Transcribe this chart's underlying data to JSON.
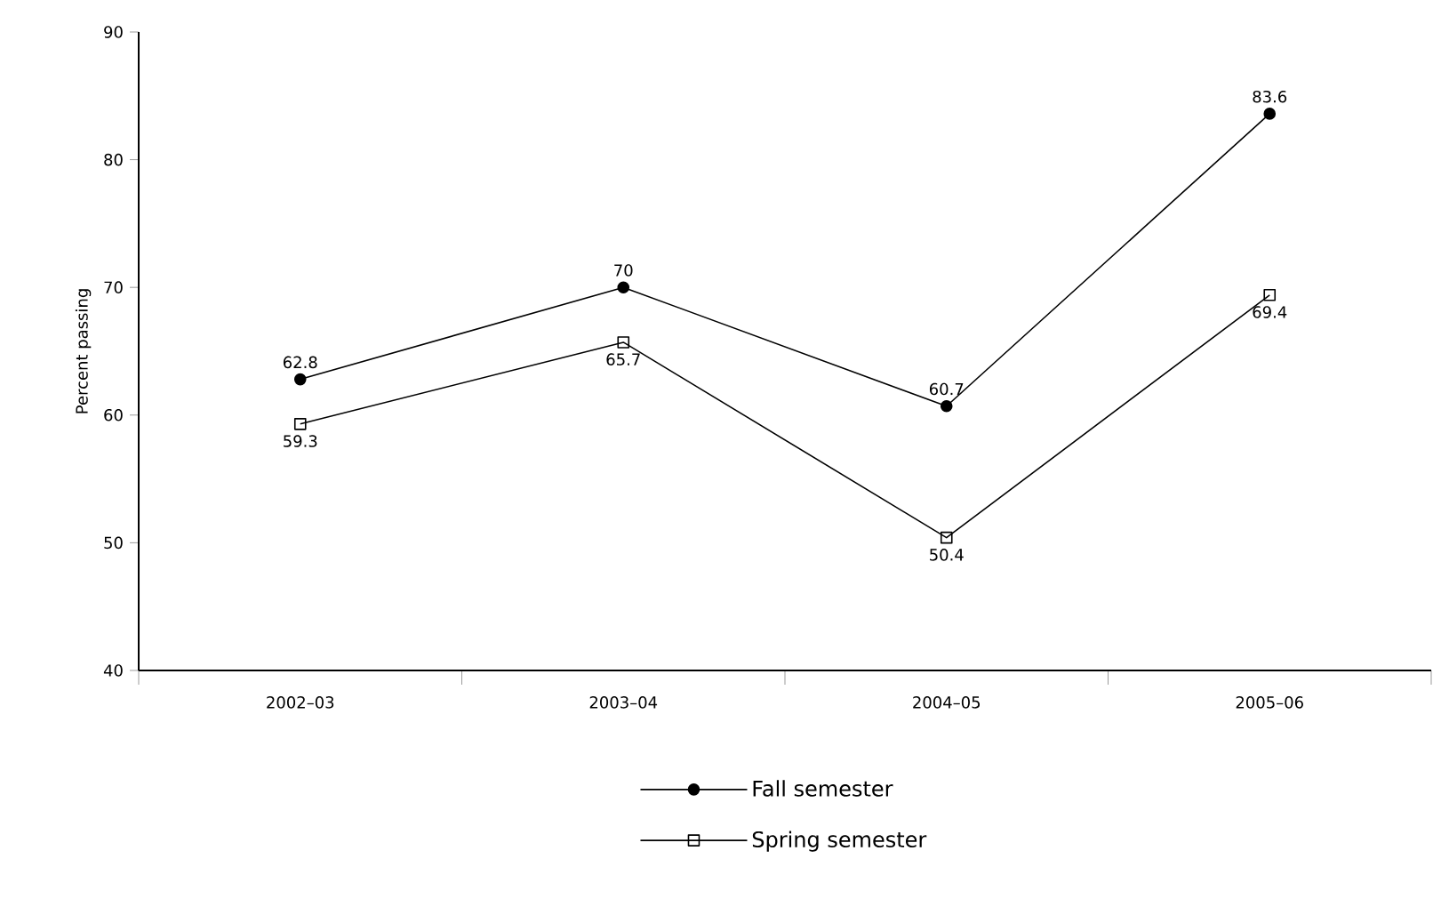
{
  "chart_data": {
    "type": "line",
    "ylabel": "Percent passing",
    "categories": [
      "2002–03",
      "2003–04",
      "2004–05",
      "2005–06"
    ],
    "series": [
      {
        "name": "Fall semester",
        "color": "#000000",
        "marker": "circle",
        "values": [
          62.8,
          70,
          60.7,
          83.6
        ]
      },
      {
        "name": "Spring semester",
        "color": "#000000",
        "marker": "square",
        "values": [
          59.3,
          65.7,
          50.4,
          69.4
        ]
      }
    ],
    "ylim": [
      40,
      90
    ],
    "yticks": [
      40,
      50,
      60,
      70,
      80,
      90
    ],
    "grid": false,
    "legend": "bottom",
    "data_labels": true,
    "line_style": "solid"
  }
}
